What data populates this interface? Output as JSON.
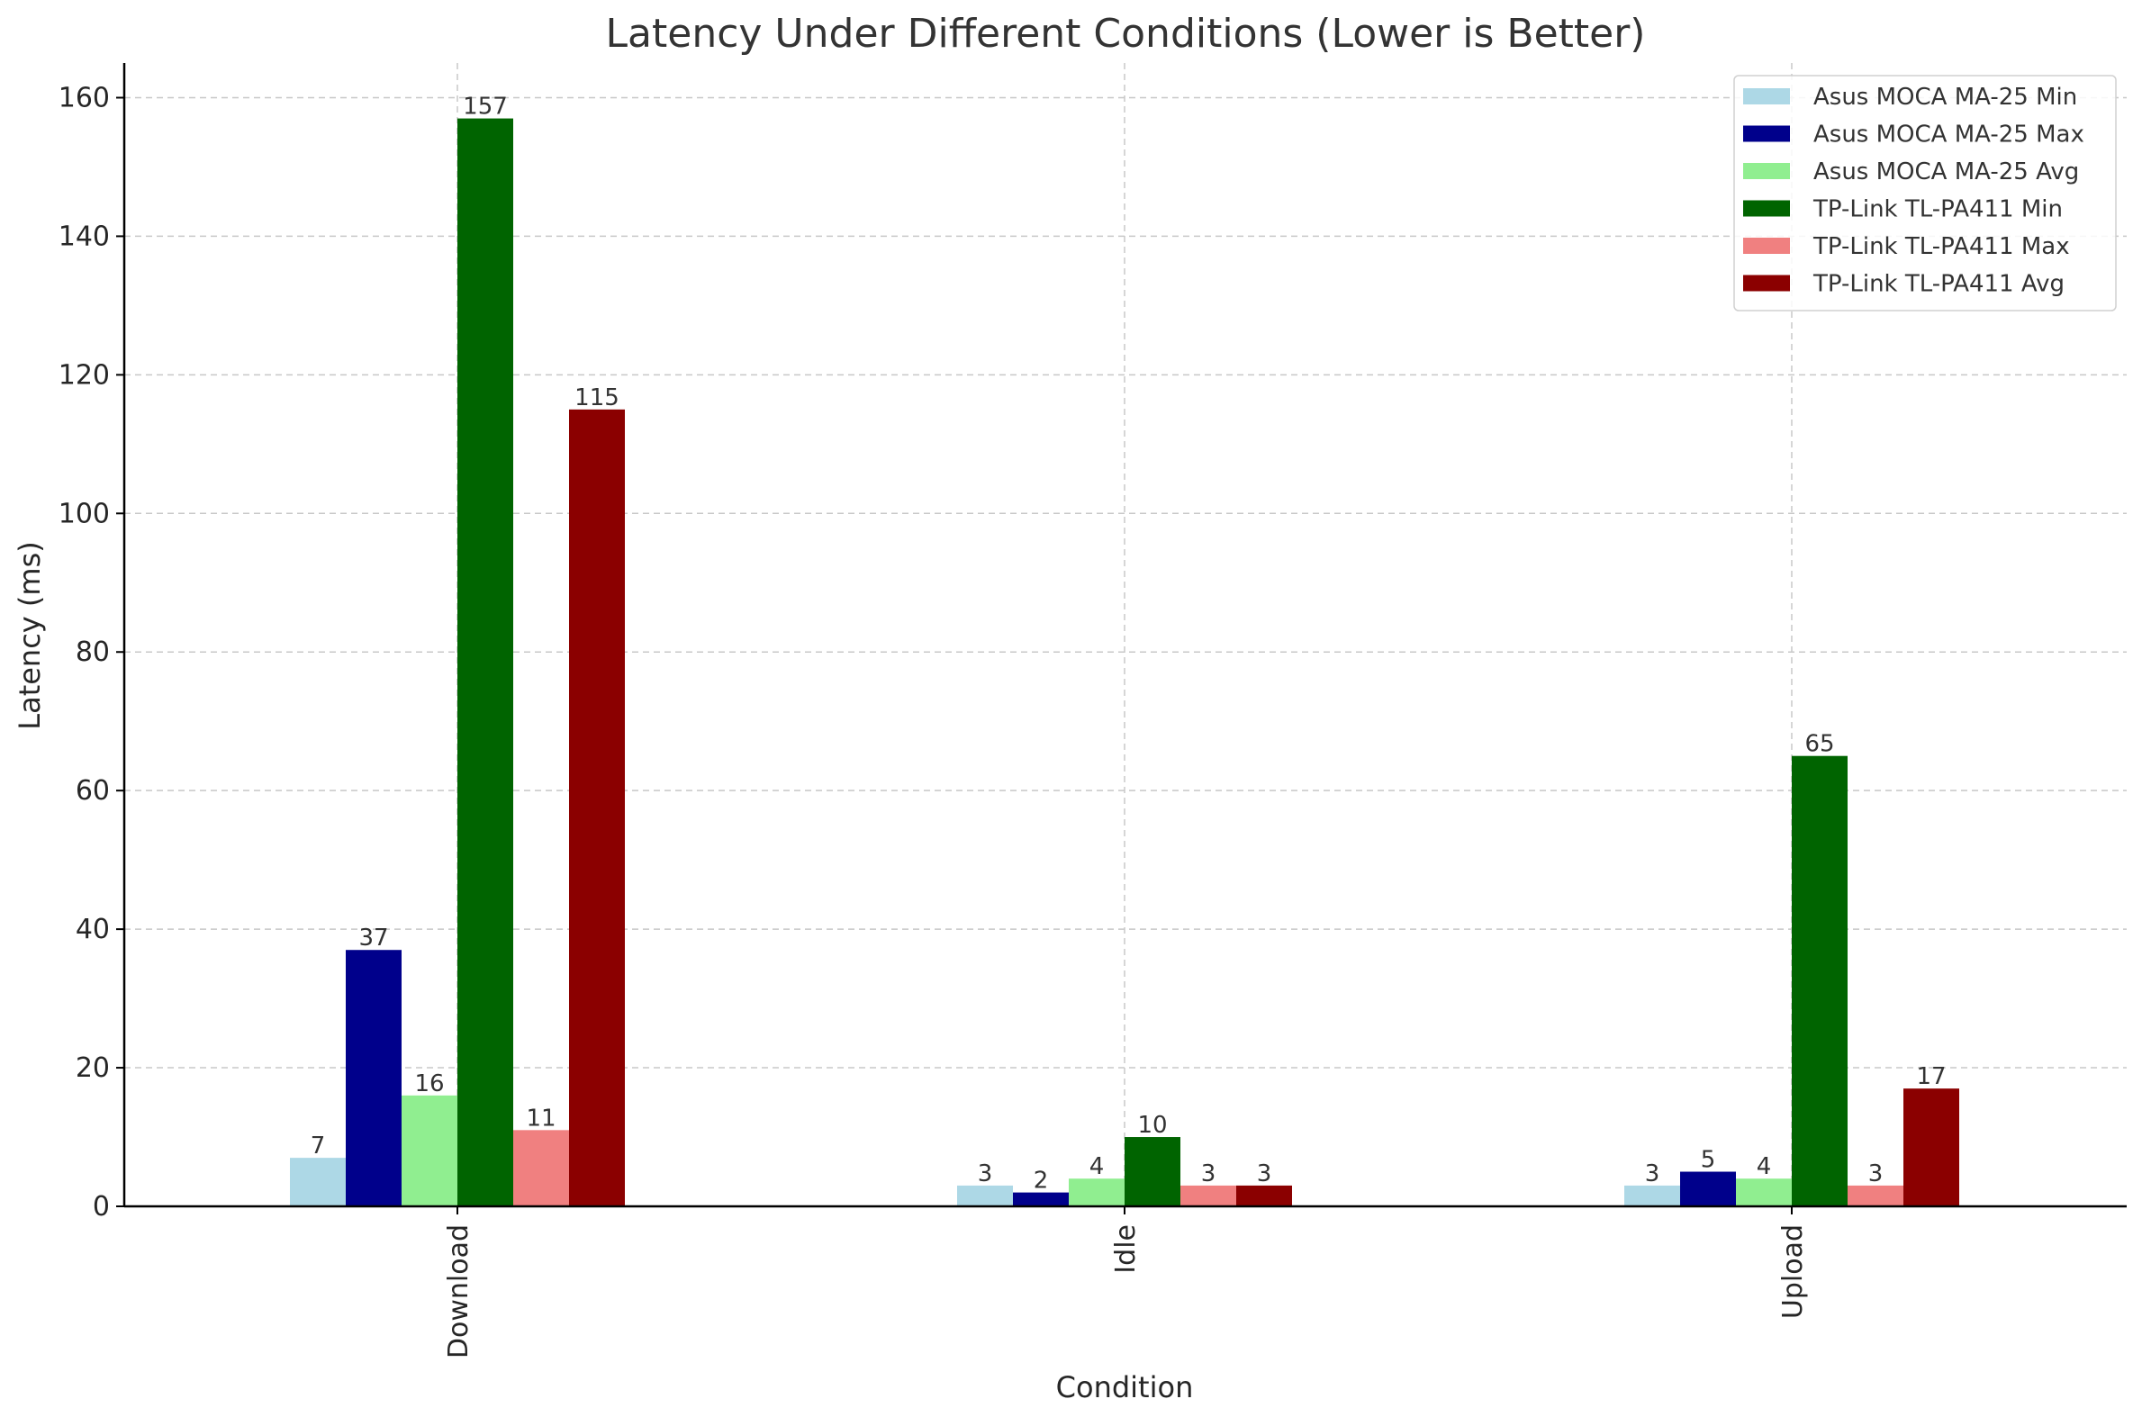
{
  "chart_data": {
    "type": "bar",
    "title": "Latency Under Different Conditions (Lower is Better)",
    "xlabel": "Condition",
    "ylabel": "Latency (ms)",
    "categories": [
      "Download",
      "Idle",
      "Upload"
    ],
    "ylim": [
      0,
      165
    ],
    "yticks": [
      0,
      20,
      40,
      60,
      80,
      100,
      120,
      140,
      160
    ],
    "grid": true,
    "legend_position": "top-right",
    "series": [
      {
        "name": "Asus MOCA MA-25 Min",
        "color": "#add8e6",
        "values": [
          7,
          3,
          3
        ]
      },
      {
        "name": "Asus MOCA MA-25 Max",
        "color": "#00008b",
        "values": [
          37,
          2,
          5
        ]
      },
      {
        "name": "Asus MOCA MA-25 Avg",
        "color": "#90ee90",
        "values": [
          16,
          4,
          4
        ]
      },
      {
        "name": "TP-Link TL-PA411 Min",
        "color": "#006400",
        "values": [
          157,
          10,
          65
        ]
      },
      {
        "name": "TP-Link TL-PA411 Max",
        "color": "#f08080",
        "values": [
          11,
          3,
          3
        ]
      },
      {
        "name": "TP-Link TL-PA411 Avg",
        "color": "#8b0000",
        "values": [
          115,
          3,
          17
        ]
      }
    ]
  }
}
